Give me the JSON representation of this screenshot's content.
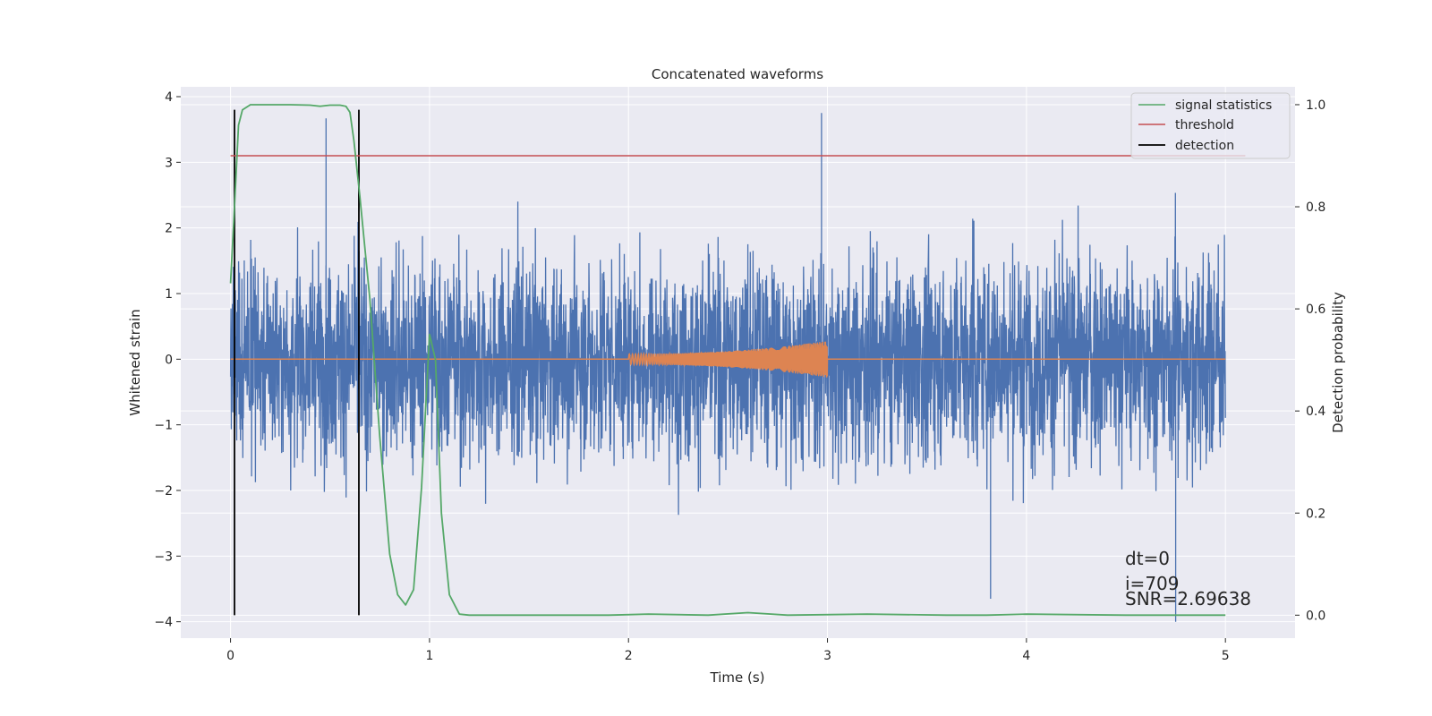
{
  "chart_data": {
    "type": "line",
    "title": "Concatenated waveforms",
    "xlabel": "Time (s)",
    "ylabel": "Whitened strain",
    "ylabel_right": "Detection probability",
    "xlim": [
      -0.25,
      5.35
    ],
    "ylim": [
      -4.25,
      4.15
    ],
    "ylim_right": [
      -0.045,
      1.035
    ],
    "x_ticks": [
      0,
      1,
      2,
      3,
      4,
      5
    ],
    "y_ticks": [
      -4,
      -3,
      -2,
      -1,
      0,
      1,
      2,
      3,
      4
    ],
    "y_ticks_right": [
      0.0,
      0.2,
      0.4,
      0.6,
      0.8,
      1.0
    ],
    "grid": true,
    "legend_position": "top-right",
    "colors": {
      "strain": "#4c72b0",
      "injection": "#dd8452",
      "signal_statistics": "#55a868",
      "threshold": "#c44e52",
      "detection": "#000000"
    },
    "series": [
      {
        "name": "signal statistics",
        "axis": "right",
        "x": [
          0.0,
          0.02,
          0.04,
          0.06,
          0.1,
          0.2,
          0.3,
          0.4,
          0.45,
          0.5,
          0.55,
          0.58,
          0.6,
          0.62,
          0.65,
          0.7,
          0.75,
          0.8,
          0.84,
          0.88,
          0.92,
          0.96,
          1.0,
          1.03,
          1.06,
          1.1,
          1.15,
          1.2,
          1.5,
          1.9,
          2.1,
          2.4,
          2.6,
          2.8,
          3.2,
          3.6,
          3.8,
          4.0,
          4.5,
          5.0
        ],
        "y": [
          0.65,
          0.8,
          0.96,
          0.99,
          1.0,
          1.0,
          1.0,
          0.999,
          0.997,
          0.999,
          0.999,
          0.997,
          0.985,
          0.93,
          0.82,
          0.62,
          0.35,
          0.12,
          0.04,
          0.02,
          0.05,
          0.25,
          0.55,
          0.5,
          0.2,
          0.04,
          0.002,
          0.0,
          0.0,
          0.0,
          0.002,
          0.0,
          0.005,
          0.0,
          0.002,
          0.0,
          0.0,
          0.002,
          0.0,
          0.0
        ]
      },
      {
        "name": "threshold",
        "axis": "right",
        "x": [
          0.0,
          5.1
        ],
        "y": [
          0.9,
          0.9
        ]
      },
      {
        "name": "detection",
        "axis": "left",
        "x": [
          0.02,
          0.645
        ],
        "y_range": [
          -3.9,
          3.8
        ]
      },
      {
        "name": "",
        "role": "whitened strain (noise)",
        "axis": "left",
        "x_range": [
          0,
          5
        ],
        "typical_peak_range": [
          -2.5,
          2.5
        ],
        "extreme_values": [
          {
            "x": 0.48,
            "y": 3.67
          },
          {
            "x": 2.97,
            "y": 3.75
          },
          {
            "x": 4.75,
            "y": -4.0
          },
          {
            "x": 3.82,
            "y": -3.65
          }
        ]
      },
      {
        "name": "",
        "role": "injected chirp waveform",
        "axis": "left",
        "x_range": [
          2.0,
          3.0
        ],
        "amplitude_start": 0.08,
        "amplitude_end": 0.28
      }
    ],
    "annotations": [
      "dt=0",
      "i=709",
      "SNR=2.69638"
    ]
  }
}
